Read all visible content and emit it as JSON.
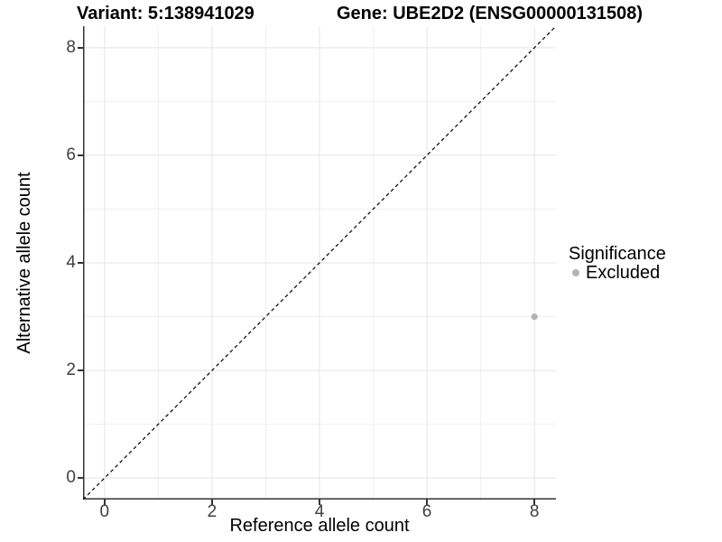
{
  "titles": {
    "variant": "Variant: 5:138941029",
    "gene": "Gene: UBE2D2 (ENSG00000131508)"
  },
  "axes": {
    "x": {
      "label": "Reference allele count"
    },
    "y": {
      "label": "Alternative allele count"
    }
  },
  "legend": {
    "title": "Significance",
    "items": [
      {
        "label": "Excluded",
        "color": "#b3b3b3"
      }
    ]
  },
  "chart_data": {
    "type": "scatter",
    "title": "Variant: 5:138941029   Gene: UBE2D2 (ENSG00000131508)",
    "xlabel": "Reference allele count",
    "ylabel": "Alternative allele count",
    "xlim": [
      -0.4,
      8.4
    ],
    "ylim": [
      -0.4,
      8.4
    ],
    "x_ticks": [
      0,
      2,
      4,
      6,
      8
    ],
    "y_ticks": [
      0,
      2,
      4,
      6,
      8
    ],
    "grid": "major+minor",
    "legend_position": "right",
    "reference_line": {
      "type": "identity",
      "from": [
        -0.4,
        -0.4
      ],
      "to": [
        8.4,
        8.4
      ],
      "style": "dashed",
      "color": "#000000"
    },
    "series": [
      {
        "name": "Excluded",
        "color": "#b3b3b3",
        "points": [
          {
            "x": 8,
            "y": 3
          }
        ]
      }
    ],
    "colors": {
      "major_grid": "#e4e4e4",
      "minor_grid": "#efefef",
      "axis_line": "#333333",
      "tick_text": "#404040",
      "point_excluded": "#b3b3b3"
    }
  }
}
